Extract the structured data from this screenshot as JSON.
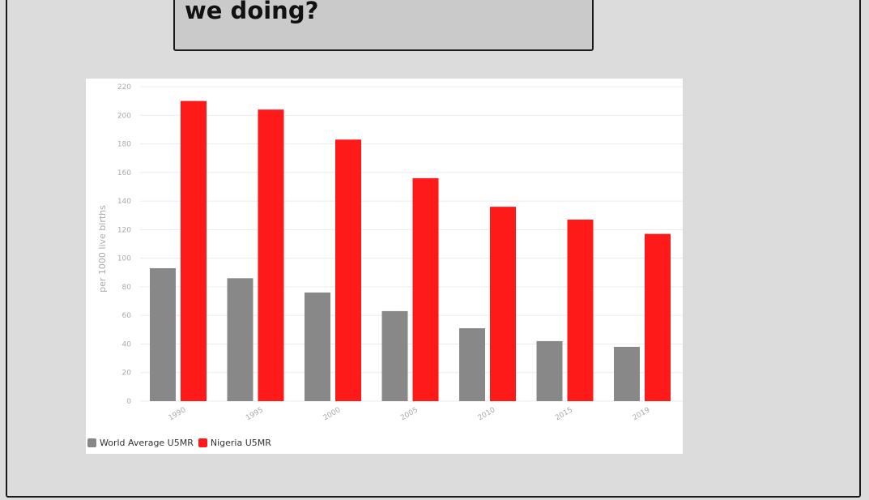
{
  "slide": {
    "title": "we doing?"
  },
  "chart_data": {
    "type": "bar",
    "categories": [
      "1990",
      "1995",
      "2000",
      "2005",
      "2010",
      "2015",
      "2019"
    ],
    "series": [
      {
        "name": "World Average U5MR",
        "color": "#888888",
        "values": [
          93,
          86,
          76,
          63,
          51,
          42,
          38
        ]
      },
      {
        "name": "Nigeria U5MR",
        "color": "#ff1a1a",
        "values": [
          210,
          204,
          183,
          156,
          136,
          127,
          117
        ]
      }
    ],
    "ylabel": "per 1000 live births",
    "ylim": [
      0,
      220
    ],
    "yticks": [
      0,
      20,
      40,
      60,
      80,
      100,
      120,
      140,
      160,
      180,
      200,
      220
    ],
    "grid": true,
    "legend_position": "bottom-left"
  }
}
